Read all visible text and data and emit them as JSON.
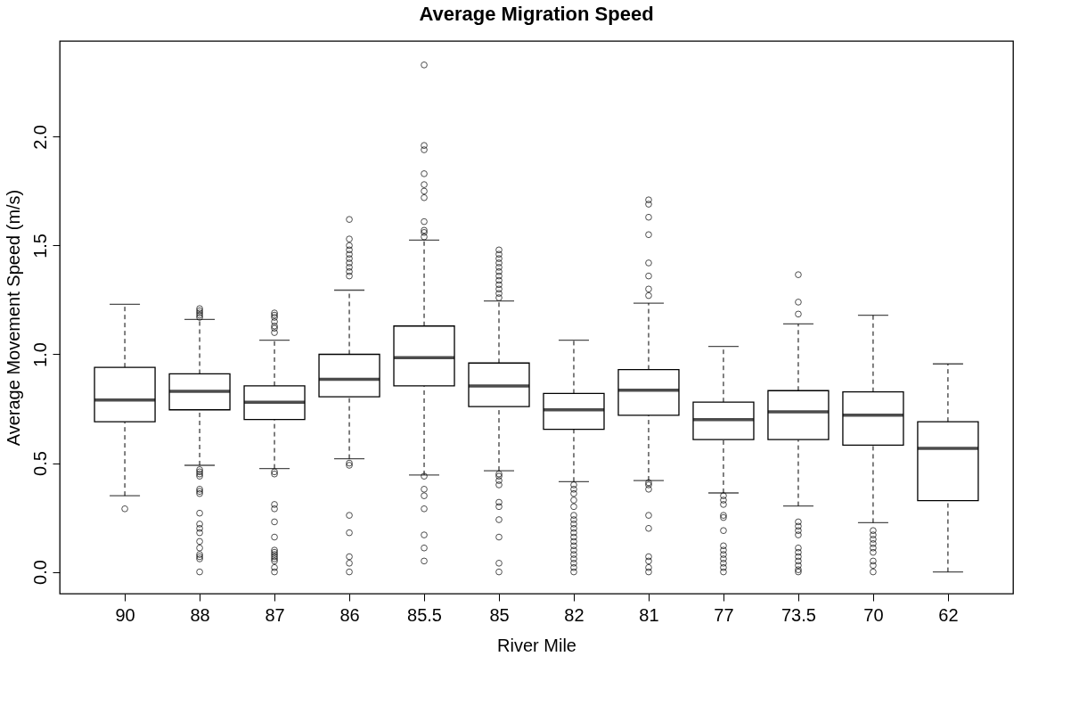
{
  "chart_data": {
    "type": "box",
    "title": "Average Migration Speed",
    "xlabel": "River Mile",
    "ylabel": "Average Movement Speed (m/s)",
    "categories": [
      "90",
      "88",
      "87",
      "86",
      "85.5",
      "85",
      "82",
      "81",
      "77",
      "73.5",
      "70",
      "62"
    ],
    "color": "#000000",
    "grid": false,
    "ylim": [
      -0.1,
      2.44
    ],
    "yticks": [
      {
        "value": 0,
        "label": "0.0"
      },
      0.5,
      {
        "value": 1,
        "label": "1.0"
      },
      1.5,
      {
        "value": 2,
        "label": "2.0"
      }
    ],
    "boxes": [
      {
        "low": 0.35,
        "q1": 0.69,
        "median": 0.79,
        "q3": 0.94,
        "high": 1.23,
        "outliers": [
          0.29
        ]
      },
      {
        "low": 0.49,
        "q1": 0.745,
        "median": 0.83,
        "q3": 0.91,
        "high": 1.16,
        "outliers": [
          1.17,
          1.18,
          1.19,
          1.2,
          1.21,
          0.47,
          0.46,
          0.45,
          0.44,
          0.38,
          0.37,
          0.36,
          0.27,
          0.22,
          0.2,
          0.18,
          0.14,
          0.11,
          0.08,
          0.07,
          0.06,
          0.0
        ]
      },
      {
        "low": 0.475,
        "q1": 0.7,
        "median": 0.78,
        "q3": 0.855,
        "high": 1.065,
        "outliers": [
          1.1,
          1.12,
          1.13,
          1.15,
          1.17,
          1.18,
          1.19,
          0.46,
          0.45,
          0.31,
          0.29,
          0.23,
          0.16,
          0.1,
          0.09,
          0.08,
          0.07,
          0.06,
          0.05,
          0.02,
          0.0
        ]
      },
      {
        "low": 0.52,
        "q1": 0.805,
        "median": 0.885,
        "q3": 1.0,
        "high": 1.295,
        "outliers": [
          1.36,
          1.38,
          1.4,
          1.42,
          1.44,
          1.46,
          1.48,
          1.5,
          1.53,
          1.62,
          0.5,
          0.49,
          0.26,
          0.18,
          0.07,
          0.04,
          0.0
        ]
      },
      {
        "low": 0.445,
        "q1": 0.855,
        "median": 0.985,
        "q3": 1.13,
        "high": 1.525,
        "outliers": [
          1.54,
          1.56,
          1.57,
          1.61,
          1.72,
          1.75,
          1.78,
          1.83,
          1.94,
          1.96,
          2.33,
          0.44,
          0.38,
          0.35,
          0.29,
          0.17,
          0.11,
          0.05
        ]
      },
      {
        "low": 0.465,
        "q1": 0.76,
        "median": 0.855,
        "q3": 0.96,
        "high": 1.245,
        "outliers": [
          1.26,
          1.28,
          1.3,
          1.32,
          1.34,
          1.36,
          1.38,
          1.4,
          1.42,
          1.44,
          1.46,
          1.48,
          0.45,
          0.44,
          0.42,
          0.4,
          0.32,
          0.3,
          0.24,
          0.16,
          0.04,
          0.0
        ]
      },
      {
        "low": 0.415,
        "q1": 0.655,
        "median": 0.745,
        "q3": 0.82,
        "high": 1.065,
        "outliers": [
          0.4,
          0.38,
          0.36,
          0.33,
          0.3,
          0.26,
          0.24,
          0.22,
          0.2,
          0.18,
          0.16,
          0.14,
          0.12,
          0.1,
          0.08,
          0.06,
          0.04,
          0.02,
          0.0
        ]
      },
      {
        "low": 0.42,
        "q1": 0.72,
        "median": 0.835,
        "q3": 0.93,
        "high": 1.235,
        "outliers": [
          1.27,
          1.3,
          1.36,
          1.42,
          1.55,
          1.63,
          1.69,
          1.71,
          0.41,
          0.4,
          0.38,
          0.26,
          0.2,
          0.07,
          0.05,
          0.02,
          0.0
        ]
      },
      {
        "low": 0.363,
        "q1": 0.608,
        "median": 0.7,
        "q3": 0.78,
        "high": 1.036,
        "outliers": [
          0.35,
          0.33,
          0.31,
          0.26,
          0.25,
          0.19,
          0.12,
          0.1,
          0.08,
          0.06,
          0.04,
          0.02,
          0.0
        ]
      },
      {
        "low": 0.303,
        "q1": 0.608,
        "median": 0.736,
        "q3": 0.833,
        "high": 1.14,
        "outliers": [
          1.366,
          1.24,
          1.185,
          0.23,
          0.21,
          0.19,
          0.17,
          0.11,
          0.09,
          0.07,
          0.05,
          0.03,
          0.01,
          0.0
        ]
      },
      {
        "low": 0.226,
        "q1": 0.583,
        "median": 0.72,
        "q3": 0.827,
        "high": 1.18,
        "outliers": [
          0.19,
          0.17,
          0.15,
          0.13,
          0.11,
          0.09,
          0.05,
          0.03,
          0.0
        ]
      },
      {
        "low": 0.0,
        "q1": 0.328,
        "median": 0.568,
        "q3": 0.69,
        "high": 0.956
      }
    ]
  }
}
